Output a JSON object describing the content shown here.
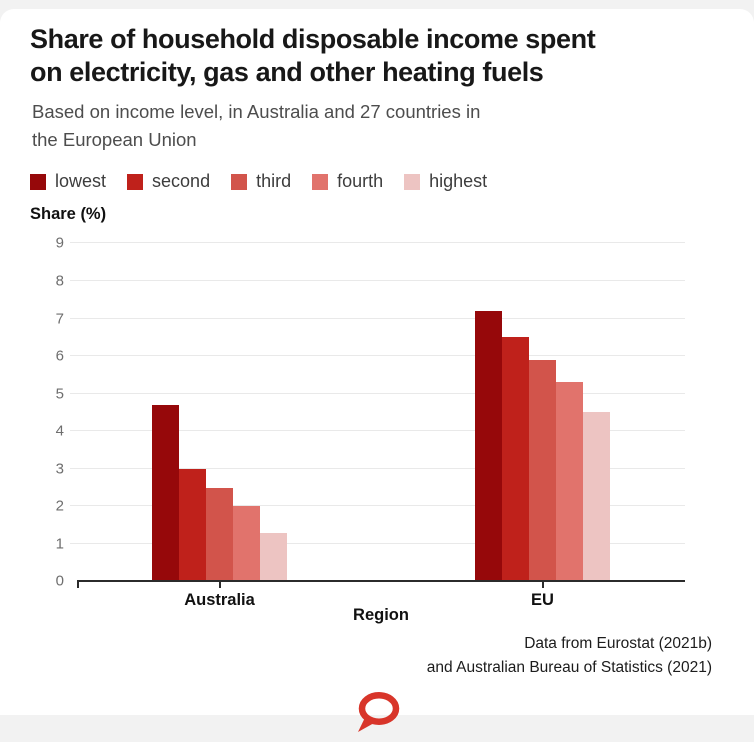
{
  "page": {
    "page_background": "#f2f2f2",
    "card_background": "#ffffff"
  },
  "header": {
    "title_line1": "Share of household disposable income spent",
    "title_line2": "on electricity, gas and other heating fuels",
    "subtitle_line1": "Based on income level, in Australia and 27 countries in",
    "subtitle_line2": "the European Union"
  },
  "legend": {
    "items": [
      {
        "label": "lowest",
        "color": "#96080a"
      },
      {
        "label": "second",
        "color": "#bf211b"
      },
      {
        "label": "third",
        "color": "#d2544b"
      },
      {
        "label": "fourth",
        "color": "#e1736c"
      },
      {
        "label": "highest",
        "color": "#edc4c2"
      }
    ]
  },
  "chart_data": {
    "type": "bar",
    "title": "Share of household disposable income spent on electricity, gas and other heating fuels",
    "subtitle": "Based on income level, in Australia and 27 countries in the European Union",
    "categories": [
      "Australia",
      "EU"
    ],
    "series": [
      {
        "name": "lowest",
        "color": "#96080a",
        "values": [
          4.7,
          7.2
        ]
      },
      {
        "name": "second",
        "color": "#bf211b",
        "values": [
          3.0,
          6.5
        ]
      },
      {
        "name": "third",
        "color": "#d2544b",
        "values": [
          2.5,
          5.9
        ]
      },
      {
        "name": "fourth",
        "color": "#e1736c",
        "values": [
          2.0,
          5.3
        ]
      },
      {
        "name": "highest",
        "color": "#edc4c2",
        "values": [
          1.3,
          4.5
        ]
      }
    ],
    "xlabel": "Region",
    "ylabel": "Share (%)",
    "ylim": [
      0,
      9
    ],
    "yticks": [
      0,
      1,
      2,
      3,
      4,
      5,
      6,
      7,
      8,
      9
    ],
    "grid": true,
    "legend_position": "top"
  },
  "footer": {
    "source_line1": "Data from Eurostat (2021b)",
    "source_line2": "and Australian Bureau of Statistics (2021)"
  },
  "logo": {
    "name": "the-conversation-logo",
    "color": "#d8352a"
  }
}
